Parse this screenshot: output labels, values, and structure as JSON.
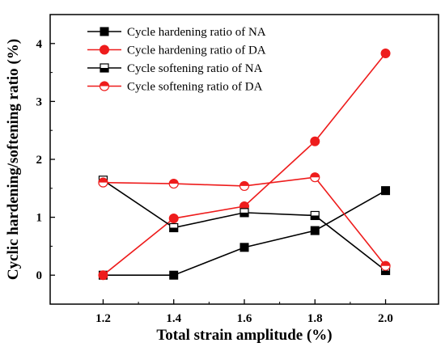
{
  "chart_data": {
    "type": "line",
    "title": "",
    "xlabel": "Total strain amplitude (%)",
    "ylabel": "Cyclic hardening/softening ratio (%)",
    "x": [
      1.2,
      1.4,
      1.6,
      1.8,
      2.0
    ],
    "x_tick_labels": [
      "1.2",
      "1.4",
      "1.6",
      "1.8",
      "2.0"
    ],
    "xlim": [
      1.05,
      2.15
    ],
    "y_ticks": [
      0,
      1,
      2,
      3,
      4
    ],
    "y_tick_labels": [
      "0",
      "1",
      "2",
      "3",
      "4"
    ],
    "ylim": [
      -0.5,
      4.5
    ],
    "grid": false,
    "legend_position": "top-left",
    "series": [
      {
        "name": "Cycle hardening ratio of NA",
        "values": [
          0.0,
          0.0,
          0.48,
          0.77,
          1.46
        ],
        "color": "#000000",
        "marker": "square-filled"
      },
      {
        "name": "Cycle hardening ratio of DA",
        "values": [
          0.0,
          0.98,
          1.19,
          2.31,
          3.83
        ],
        "color": "#ee1c1c",
        "marker": "circle-filled"
      },
      {
        "name": "Cycle softening ratio of NA",
        "values": [
          1.64,
          0.82,
          1.08,
          1.03,
          0.08
        ],
        "color": "#000000",
        "marker": "square-half"
      },
      {
        "name": "Cycle softening ratio of DA",
        "values": [
          1.6,
          1.58,
          1.54,
          1.69,
          0.16
        ],
        "color": "#ee1c1c",
        "marker": "circle-half"
      }
    ]
  }
}
